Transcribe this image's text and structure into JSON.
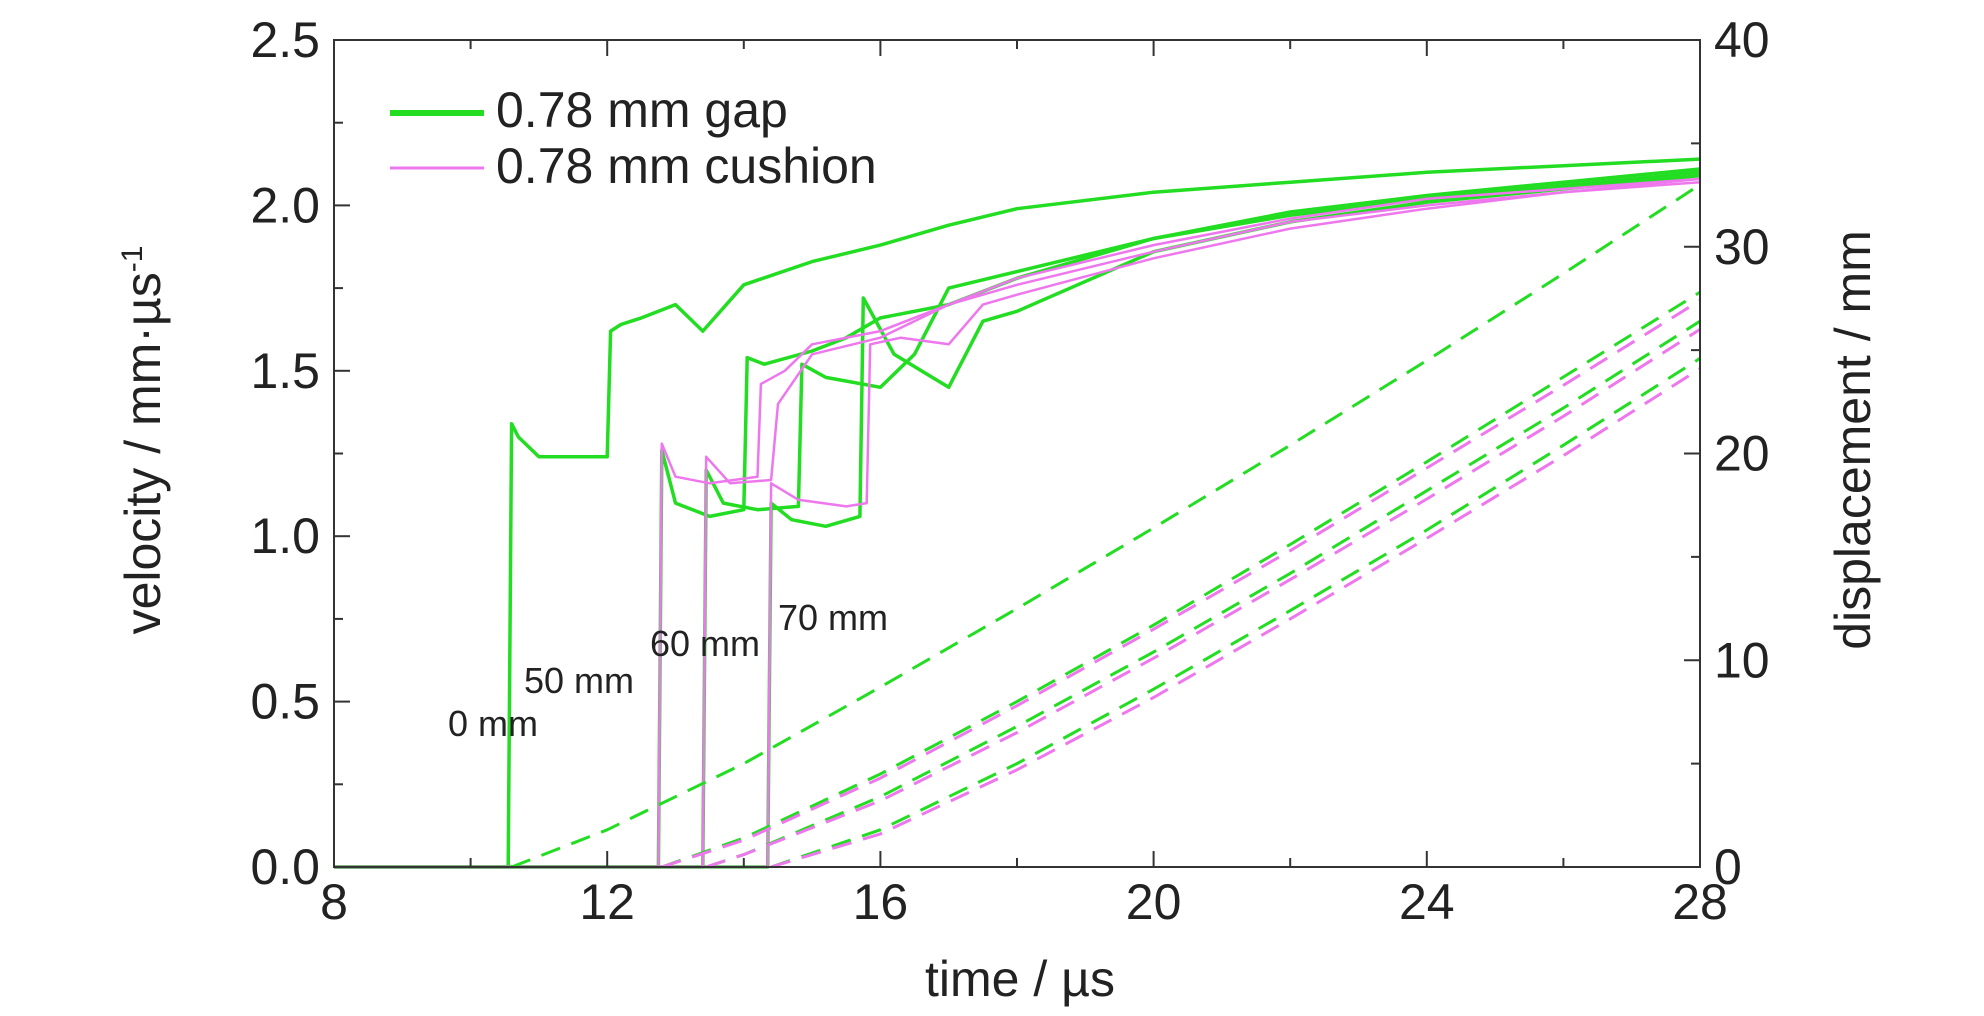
{
  "chart_data": {
    "type": "line",
    "xlabel": "time / µs",
    "ylabel_left": "velocity / mm·µs",
    "ylabel_left_sup": "-1",
    "ylabel_right": "displacement / mm",
    "xlim": [
      8,
      28
    ],
    "ylim_left": [
      0.0,
      2.5
    ],
    "ylim_right": [
      0,
      40
    ],
    "x_ticks": [
      8,
      12,
      16,
      20,
      24,
      28
    ],
    "y_left_ticks": [
      "0.0",
      "0.5",
      "1.0",
      "1.5",
      "2.0",
      "2.5"
    ],
    "y_right_ticks": [
      "0",
      "10",
      "20",
      "30",
      "40"
    ],
    "grid": false,
    "legend": {
      "placement": "top-left",
      "entries": [
        {
          "label": "0.78 mm gap",
          "color": "#22dd22"
        },
        {
          "label": "0.78 mm cushion",
          "color": "#ee77ee"
        }
      ]
    },
    "annotations": [
      "0 mm",
      "50 mm",
      "60 mm",
      "70 mm"
    ],
    "colors": {
      "gap": "#22dd22",
      "cushion": "#ee77ee"
    },
    "series": [
      {
        "group": "gap",
        "axis": "left",
        "style": "solid",
        "x": [
          8,
          10.55,
          10.6,
          10.7,
          11.0,
          11.5,
          12.0,
          12.05,
          12.2,
          12.5,
          13.0,
          13.4,
          14.0,
          15.0,
          16.0,
          17.0,
          18.0,
          20.0,
          22.0,
          24.0,
          26.0,
          28.0
        ],
        "y": [
          0.0,
          0.0,
          1.34,
          1.3,
          1.24,
          1.24,
          1.24,
          1.62,
          1.64,
          1.66,
          1.7,
          1.62,
          1.76,
          1.83,
          1.88,
          1.94,
          1.99,
          2.04,
          2.07,
          2.1,
          2.12,
          2.14
        ]
      },
      {
        "group": "gap",
        "axis": "left",
        "style": "solid",
        "x": [
          8,
          12.75,
          12.8,
          13.0,
          13.5,
          14.0,
          14.05,
          14.3,
          15.0,
          15.5,
          16.0,
          17.0,
          18.0,
          20.0,
          22.0,
          24.0,
          26.0,
          28.0
        ],
        "y": [
          0.0,
          0.0,
          1.26,
          1.1,
          1.06,
          1.08,
          1.54,
          1.52,
          1.56,
          1.6,
          1.66,
          1.7,
          1.78,
          1.9,
          1.98,
          2.03,
          2.07,
          2.11
        ]
      },
      {
        "group": "gap",
        "axis": "left",
        "style": "solid",
        "x": [
          8,
          13.4,
          13.45,
          13.7,
          14.2,
          14.8,
          14.85,
          15.2,
          16.0,
          16.5,
          17.0,
          18.0,
          20.0,
          22.0,
          24.0,
          26.0,
          28.0
        ],
        "y": [
          0.0,
          0.0,
          1.2,
          1.1,
          1.08,
          1.09,
          1.52,
          1.48,
          1.45,
          1.55,
          1.75,
          1.8,
          1.9,
          1.97,
          2.02,
          2.06,
          2.1
        ]
      },
      {
        "group": "gap",
        "axis": "left",
        "style": "solid",
        "x": [
          8,
          14.35,
          14.4,
          14.7,
          15.2,
          15.7,
          15.75,
          16.2,
          17.0,
          17.5,
          18.0,
          20.0,
          22.0,
          24.0,
          26.0,
          28.0
        ],
        "y": [
          0.0,
          0.0,
          1.1,
          1.05,
          1.03,
          1.06,
          1.72,
          1.55,
          1.45,
          1.65,
          1.68,
          1.86,
          1.95,
          2.01,
          2.05,
          2.09
        ]
      },
      {
        "group": "cushion",
        "axis": "left",
        "style": "solid",
        "x": [
          8,
          12.75,
          12.8,
          13.0,
          13.5,
          14.2,
          14.25,
          14.6,
          15.0,
          16.0,
          17.0,
          18.0,
          20.0,
          22.0,
          24.0,
          26.0,
          28.0
        ],
        "y": [
          0.0,
          0.0,
          1.28,
          1.18,
          1.16,
          1.18,
          1.46,
          1.5,
          1.58,
          1.62,
          1.7,
          1.78,
          1.88,
          1.96,
          2.02,
          2.05,
          2.08
        ]
      },
      {
        "group": "cushion",
        "axis": "left",
        "style": "solid",
        "x": [
          8,
          13.4,
          13.45,
          13.8,
          14.4,
          14.5,
          15.0,
          16.0,
          17.0,
          18.0,
          20.0,
          22.0,
          24.0,
          26.0,
          28.0
        ],
        "y": [
          0.0,
          0.0,
          1.24,
          1.16,
          1.17,
          1.4,
          1.55,
          1.6,
          1.7,
          1.76,
          1.86,
          1.95,
          2.0,
          2.04,
          2.08
        ]
      },
      {
        "group": "cushion",
        "axis": "left",
        "style": "solid",
        "x": [
          8,
          14.35,
          14.4,
          14.8,
          15.5,
          15.8,
          15.85,
          16.3,
          17.0,
          17.5,
          18.0,
          20.0,
          22.0,
          24.0,
          26.0,
          28.0
        ],
        "y": [
          0.0,
          0.0,
          1.16,
          1.11,
          1.09,
          1.1,
          1.58,
          1.6,
          1.58,
          1.7,
          1.73,
          1.84,
          1.93,
          1.99,
          2.04,
          2.07
        ]
      },
      {
        "group": "gap",
        "axis": "right",
        "style": "dashed",
        "x": [
          10.6,
          12,
          14,
          16,
          18,
          20,
          22,
          24,
          26,
          28
        ],
        "y": [
          0.0,
          1.8,
          5.0,
          8.7,
          12.5,
          16.4,
          20.4,
          24.5,
          28.7,
          33.0
        ]
      },
      {
        "group": "gap",
        "axis": "right",
        "style": "dashed",
        "x": [
          12.8,
          14,
          16,
          18,
          20,
          22,
          24,
          26,
          28
        ],
        "y": [
          0.0,
          1.4,
          4.5,
          8.0,
          11.7,
          15.6,
          19.6,
          23.7,
          27.8
        ]
      },
      {
        "group": "gap",
        "axis": "right",
        "style": "dashed",
        "x": [
          13.45,
          14,
          16,
          18,
          20,
          22,
          24,
          26,
          28
        ],
        "y": [
          0.0,
          0.6,
          3.4,
          6.8,
          10.4,
          14.2,
          18.2,
          22.2,
          26.4
        ]
      },
      {
        "group": "gap",
        "axis": "right",
        "style": "dashed",
        "x": [
          14.4,
          16,
          18,
          20,
          22,
          24,
          26,
          28
        ],
        "y": [
          0.0,
          1.8,
          5.0,
          8.6,
          12.4,
          16.3,
          20.4,
          24.6
        ]
      },
      {
        "group": "cushion",
        "axis": "right",
        "style": "dashed",
        "x": [
          12.8,
          14,
          16,
          18,
          20,
          22,
          24,
          26,
          28
        ],
        "y": [
          0.0,
          1.3,
          4.3,
          7.8,
          11.5,
          15.3,
          19.3,
          23.3,
          27.4
        ]
      },
      {
        "group": "cushion",
        "axis": "right",
        "style": "dashed",
        "x": [
          13.45,
          14,
          16,
          18,
          20,
          22,
          24,
          26,
          28
        ],
        "y": [
          0.0,
          0.6,
          3.2,
          6.5,
          10.1,
          13.9,
          17.8,
          21.8,
          26.0
        ]
      },
      {
        "group": "cushion",
        "axis": "right",
        "style": "dashed",
        "x": [
          14.4,
          16,
          18,
          20,
          22,
          24,
          26,
          28
        ],
        "y": [
          0.0,
          1.6,
          4.7,
          8.2,
          12.0,
          15.9,
          19.9,
          24.1
        ]
      }
    ]
  }
}
